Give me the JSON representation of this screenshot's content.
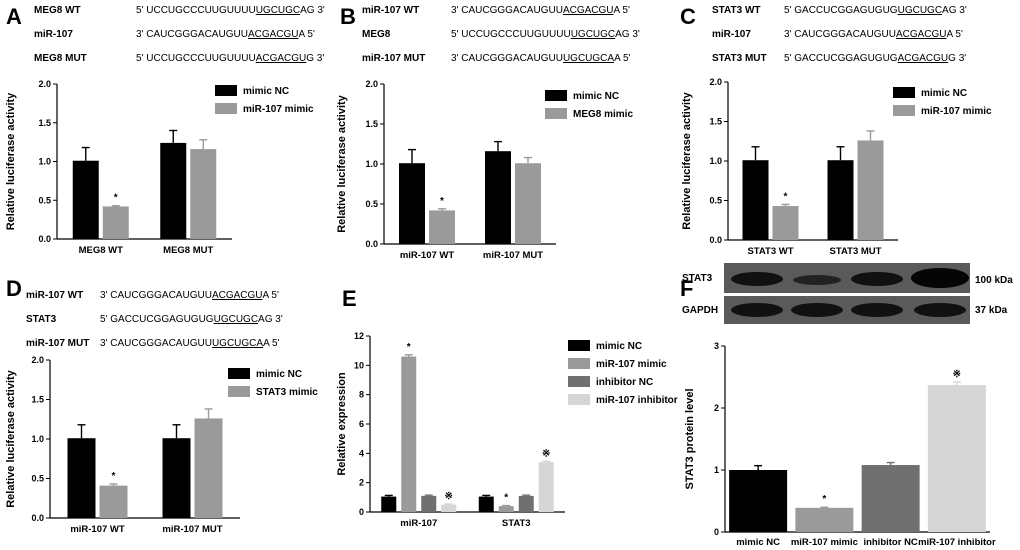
{
  "colors": {
    "mimic_nc": "#000000",
    "mimic": "#9a9a9a",
    "inhibitor_nc": "#707070",
    "inhibitor": "#d6d6d6"
  },
  "panels": [
    {
      "label": "A",
      "sequences": [
        {
          "name": "MEG8 WT",
          "pre": "5' UCCUGCCCUUGUUUU",
          "site": "UGCUGC",
          "post": "AG 3'"
        },
        {
          "name": "miR-107",
          "pre": "3' CAUCGGGACAUGUU",
          "site": "ACGACGU",
          "post": "A 5'"
        },
        {
          "name": "MEG8 MUT",
          "pre": "5' UCCUGCCCUUGUUUU",
          "site": "ACGACGU",
          "post": "G 3'"
        }
      ]
    },
    {
      "label": "B",
      "sequences": [
        {
          "name": "miR-107 WT",
          "pre": "3' CAUCGGGACAUGUU",
          "site": "ACGACGU",
          "post": "A 5'"
        },
        {
          "name": "MEG8",
          "pre": "5' UCCUGCCCUUGUUUU",
          "site": "UGCUGC",
          "post": "AG 3'"
        },
        {
          "name": "miR-107 MUT",
          "pre": "3' CAUCGGGACAUGUU",
          "site": "UGCUGCA",
          "post": "A 5'"
        }
      ]
    },
    {
      "label": "C",
      "sequences": [
        {
          "name": "STAT3 WT",
          "pre": "5' GACCUCGGAGUGUG",
          "site": "UGCUGC",
          "post": "AG 3'"
        },
        {
          "name": "miR-107",
          "pre": "3' CAUCGGGACAUGUU",
          "site": "ACGACGU",
          "post": "A 5'"
        },
        {
          "name": "STAT3 MUT",
          "pre": "5' GACCUCGGAGUGUG",
          "site": "ACGACGU",
          "post": "G 3'"
        }
      ]
    },
    {
      "label": "D",
      "sequences": [
        {
          "name": "miR-107 WT",
          "pre": "3' CAUCGGGACAUGUU",
          "site": "ACGACGU",
          "post": "A 5'"
        },
        {
          "name": "STAT3",
          "pre": "5' GACCUCGGAGUGUG",
          "site": "UGCUGC",
          "post": "AG 3'"
        },
        {
          "name": "miR-107 MUT",
          "pre": "3' CAUCGGGACAUGUU",
          "site": "UGCUGCA",
          "post": "A 5'"
        }
      ]
    },
    {
      "label": "E"
    },
    {
      "label": "F",
      "blot_labels": [
        "STAT3",
        "GAPDH"
      ],
      "blot_sizes": [
        "100 kDa",
        "37 kDa"
      ]
    }
  ],
  "chart_data": [
    {
      "panel": "A",
      "type": "bar",
      "ylabel": "Relative  luciferase activity",
      "ylim": [
        0,
        2.0
      ],
      "yticks": [
        "0.0",
        "0.5",
        "1.0",
        "1.5",
        "2.0"
      ],
      "ytick_values": [
        0,
        0.5,
        1.0,
        1.5,
        2.0
      ],
      "categories": [
        "MEG8 WT",
        "MEG8 MUT"
      ],
      "series": [
        {
          "name": "mimic NC",
          "color_key": "mimic_nc",
          "values": [
            1.01,
            1.24
          ],
          "errors": [
            0.17,
            0.16
          ],
          "marks": [
            "",
            ""
          ]
        },
        {
          "name": "miR-107 mimic",
          "color_key": "mimic",
          "values": [
            0.42,
            1.16
          ],
          "errors": [
            0.01,
            0.12
          ],
          "marks": [
            "*",
            ""
          ]
        }
      ],
      "legend": "top-right"
    },
    {
      "panel": "B",
      "type": "bar",
      "ylabel": "Relative  luciferase activity",
      "ylim": [
        0,
        2.0
      ],
      "yticks": [
        "0.0",
        "0.5",
        "1.0",
        "1.5",
        "2.0"
      ],
      "ytick_values": [
        0,
        0.5,
        1.0,
        1.5,
        2.0
      ],
      "categories": [
        "miR-107 WT",
        "miR-107 MUT"
      ],
      "series": [
        {
          "name": "mimic NC",
          "color_key": "mimic_nc",
          "values": [
            1.01,
            1.16
          ],
          "errors": [
            0.17,
            0.12
          ],
          "marks": [
            "",
            ""
          ]
        },
        {
          "name": "MEG8 mimic",
          "color_key": "mimic",
          "values": [
            0.42,
            1.01
          ],
          "errors": [
            0.02,
            0.07
          ],
          "marks": [
            "*",
            ""
          ]
        }
      ],
      "legend": "top-right"
    },
    {
      "panel": "C",
      "type": "bar",
      "ylabel": "Relative  luciferase activity",
      "ylim": [
        0,
        2.0
      ],
      "yticks": [
        "0.0",
        "0.5",
        "1.0",
        "1.5",
        "2.0"
      ],
      "ytick_values": [
        0,
        0.5,
        1.0,
        1.5,
        2.0
      ],
      "categories": [
        "STAT3 WT",
        "STAT3 MUT"
      ],
      "series": [
        {
          "name": "mimic NC",
          "color_key": "mimic_nc",
          "values": [
            1.01,
            1.01
          ],
          "errors": [
            0.17,
            0.17
          ],
          "marks": [
            "",
            ""
          ]
        },
        {
          "name": "miR-107 mimic",
          "color_key": "mimic",
          "values": [
            0.43,
            1.26
          ],
          "errors": [
            0.02,
            0.12
          ],
          "marks": [
            "*",
            ""
          ]
        }
      ],
      "legend": "top-right"
    },
    {
      "panel": "D",
      "type": "bar",
      "ylabel": "Relative  luciferase activity",
      "ylim": [
        0,
        2.0
      ],
      "yticks": [
        "0.0",
        "0.5",
        "1.0",
        "1.5",
        "2.0"
      ],
      "ytick_values": [
        0,
        0.5,
        1.0,
        1.5,
        2.0
      ],
      "categories": [
        "miR-107 WT",
        "miR-107 MUT"
      ],
      "series": [
        {
          "name": "mimic NC",
          "color_key": "mimic_nc",
          "values": [
            1.01,
            1.01
          ],
          "errors": [
            0.17,
            0.17
          ],
          "marks": [
            "",
            ""
          ]
        },
        {
          "name": "STAT3 mimic",
          "color_key": "mimic",
          "values": [
            0.41,
            1.26
          ],
          "errors": [
            0.02,
            0.12
          ],
          "marks": [
            "*",
            ""
          ]
        }
      ],
      "legend": "top-right"
    },
    {
      "panel": "E",
      "type": "bar",
      "ylabel": "Relative expression",
      "ylim": [
        0,
        12
      ],
      "yticks": [
        "0",
        "2",
        "4",
        "6",
        "8",
        "10",
        "12"
      ],
      "ytick_values": [
        0,
        2,
        4,
        6,
        8,
        10,
        12
      ],
      "categories": [
        "miR-107",
        "STAT3"
      ],
      "series": [
        {
          "name": "mimic NC",
          "color_key": "mimic_nc",
          "values": [
            1.05,
            1.05
          ],
          "errors": [
            0.08,
            0.08
          ],
          "marks": [
            "",
            ""
          ]
        },
        {
          "name": "miR-107 mimic",
          "color_key": "mimic",
          "values": [
            10.6,
            0.4
          ],
          "errors": [
            0.12,
            0.04
          ],
          "marks": [
            "*",
            "*"
          ]
        },
        {
          "name": "inhibitor NC",
          "color_key": "inhibitor_nc",
          "values": [
            1.1,
            1.1
          ],
          "errors": [
            0.05,
            0.05
          ],
          "marks": [
            "",
            ""
          ]
        },
        {
          "name": "miR-107 inhibitor",
          "color_key": "inhibitor",
          "values": [
            0.5,
            3.4
          ],
          "errors": [
            0.04,
            0.06
          ],
          "marks": [
            "※",
            "※"
          ]
        }
      ],
      "legend": "right"
    },
    {
      "panel": "F",
      "type": "bar",
      "ylabel": "STAT3 protein level",
      "ylim": [
        0,
        3
      ],
      "yticks": [
        "0",
        "1",
        "2",
        "3"
      ],
      "ytick_values": [
        0,
        1,
        2,
        3
      ],
      "categories": [
        "mimic NC",
        "miR-107 mimic",
        "inhibitor NC",
        "miR-107 inhibitor"
      ],
      "colors": [
        "mimic_nc",
        "mimic",
        "inhibitor_nc",
        "inhibitor"
      ],
      "values": [
        1.0,
        0.39,
        1.08,
        2.37
      ],
      "errors": [
        0.07,
        0.01,
        0.04,
        0.05
      ],
      "marks": [
        "",
        "*",
        "",
        "※"
      ]
    }
  ]
}
